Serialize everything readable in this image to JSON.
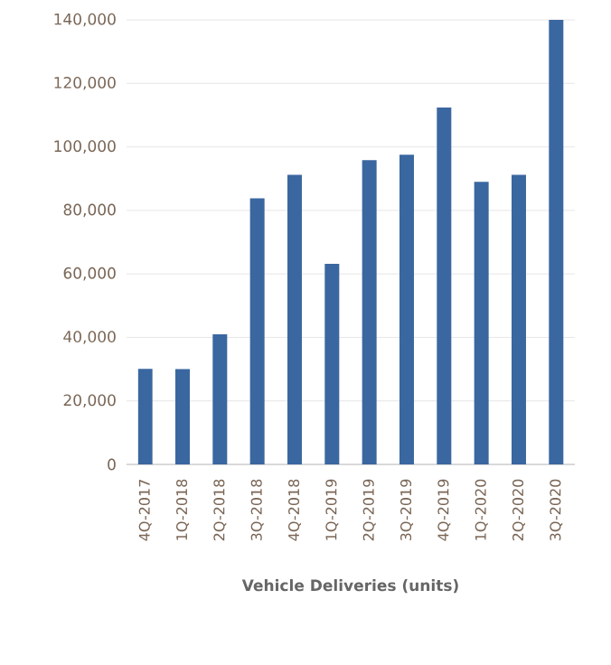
{
  "chart_data": {
    "type": "bar",
    "xlabel": "Vehicle Deliveries (units)",
    "categories": [
      "4Q-2017",
      "1Q-2018",
      "2Q-2018",
      "3Q-2018",
      "4Q-2018",
      "1Q-2019",
      "2Q-2019",
      "3Q-2019",
      "4Q-2019",
      "1Q-2020",
      "2Q-2020",
      "3Q-2020"
    ],
    "values": [
      30100,
      30000,
      41000,
      83800,
      91200,
      63200,
      95800,
      97500,
      112400,
      89000,
      91200,
      140000
    ],
    "color": "#3a67a0",
    "ylim": [
      0,
      140000
    ],
    "yticks": [
      {
        "value": 0,
        "label": "0"
      },
      {
        "value": 20000,
        "label": "20,000"
      },
      {
        "value": 40000,
        "label": "40,000"
      },
      {
        "value": 60000,
        "label": "60,000"
      },
      {
        "value": 80000,
        "label": "80,000"
      },
      {
        "value": 100000,
        "label": "100,000"
      },
      {
        "value": 120000,
        "label": "120,000"
      },
      {
        "value": 140000,
        "label": "140,000"
      }
    ],
    "grid": "y"
  }
}
